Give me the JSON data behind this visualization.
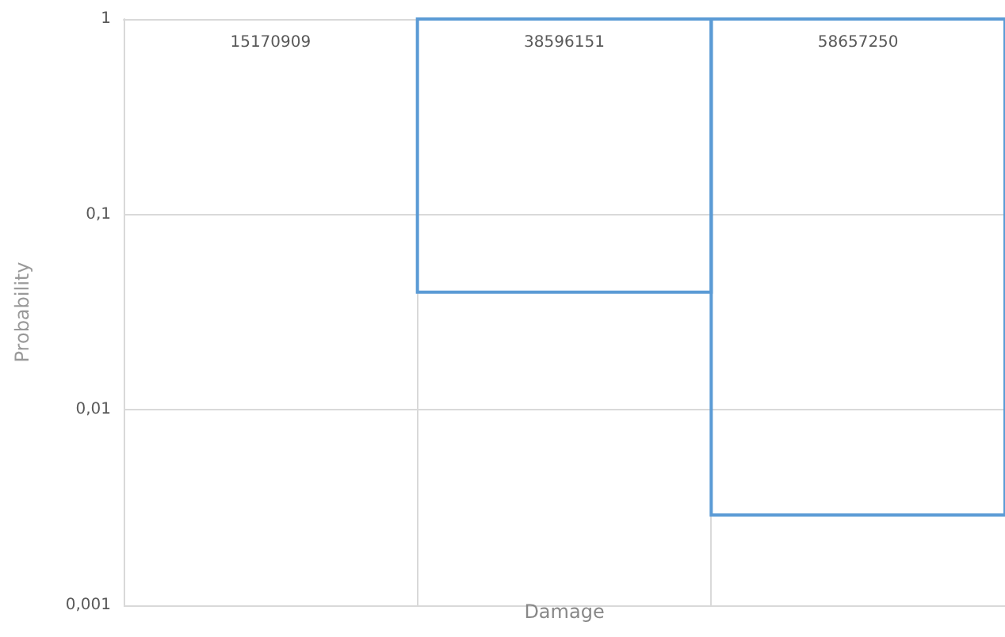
{
  "chart_data": {
    "type": "bar",
    "xlabel": "Damage",
    "ylabel": "Probability",
    "categories": [
      "15170909",
      "38596151",
      "58657250"
    ],
    "series": [
      {
        "color": "#5b9bd5",
        "base": [
          null,
          1,
          1
        ],
        "values": [
          null,
          -0.96,
          -0.9971
        ]
      }
    ],
    "log": "y",
    "ylim": [
      0.001,
      1
    ],
    "yticks": [
      {
        "value": 0.001,
        "label": "0,001"
      },
      {
        "value": 0.01,
        "label": "0,01"
      },
      {
        "value": 0.1,
        "label": "0,1"
      },
      1
    ],
    "grid": true
  }
}
